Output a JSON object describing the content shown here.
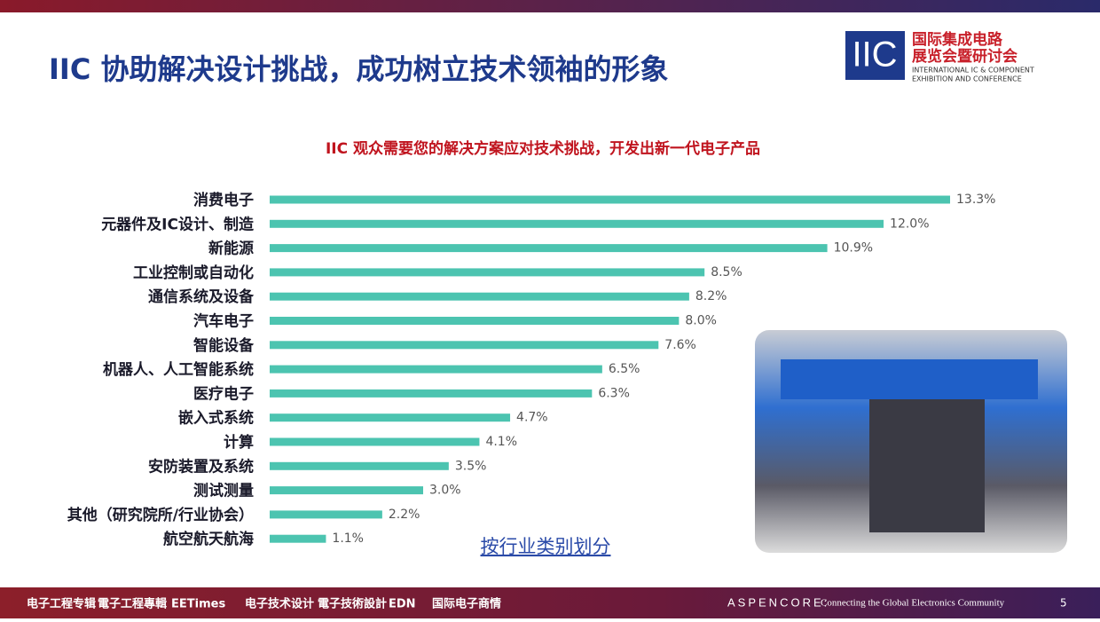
{
  "slide": {
    "title": "IIC 协助解决设计挑战，成功树立技术领袖的形象",
    "logo": {
      "mark": "IIC",
      "name_line1": "国际集成电路",
      "name_line2": "展览会暨研讨会",
      "en_line1": "INTERNATIONAL IC & COMPONENT",
      "en_line2": "EXHIBITION AND CONFERENCE"
    },
    "footer": {
      "brands": [
        "电子工程专辑",
        "電子工程專輯",
        "EETimes",
        "电子技术设计",
        "電子技術設計",
        "EDN",
        "国际电子商情"
      ],
      "company": "ASPENCORE:",
      "tagline": "Connecting the Global Electronics Community",
      "page": "5"
    }
  },
  "chart_data": {
    "type": "bar",
    "orientation": "horizontal",
    "title": "IIC 观众需要您的解决方案应对技术挑战，开发出新一代电子产品",
    "annotation": "按行业类别划分",
    "color": "#4cc4b0",
    "categories": [
      "消费电子",
      "元器件及IC设计、制造",
      "新能源",
      "工业控制或自动化",
      "通信系统及设备",
      "汽车电子",
      "智能设备",
      "机器人、人工智能系统",
      "医疗电子",
      "嵌入式系统",
      "计算",
      "安防装置及系统",
      "测试测量",
      "其他（研究院所/行业协会）",
      "航空航天航海"
    ],
    "values": [
      13.3,
      12.0,
      10.9,
      8.5,
      8.2,
      8.0,
      7.6,
      6.5,
      6.3,
      4.7,
      4.1,
      3.5,
      3.0,
      2.2,
      1.1
    ],
    "value_labels": [
      "13.3%",
      "12.0%",
      "10.9%",
      "8.5%",
      "8.2%",
      "8.0%",
      "7.6%",
      "6.5%",
      "6.3%",
      "4.7%",
      "4.1%",
      "3.5%",
      "3.0%",
      "2.2%",
      "1.1%"
    ]
  }
}
